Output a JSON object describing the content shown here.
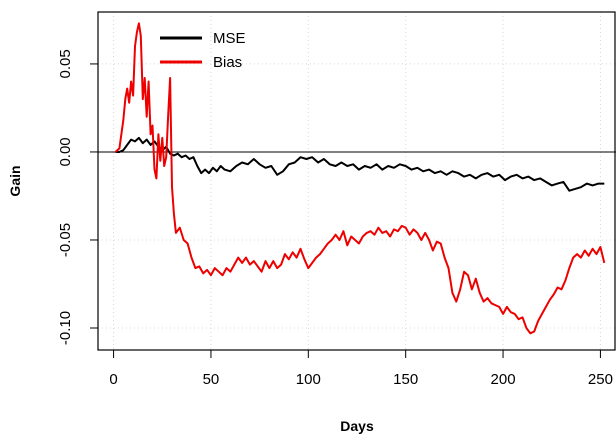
{
  "chart_data": {
    "type": "line",
    "title": "",
    "xlabel": "Days",
    "ylabel": "Gain",
    "xlim": [
      -8,
      258
    ],
    "ylim": [
      -0.1125,
      0.0795
    ],
    "x_ticks": [
      0,
      50,
      100,
      150,
      200,
      250
    ],
    "y_ticks": [
      -0.1,
      -0.05,
      0.0,
      0.05
    ],
    "y_tick_labels": [
      "-0.10",
      "-0.05",
      "0.00",
      "0.05"
    ],
    "grid": true,
    "reference_line": 0,
    "legend_position": "top-left",
    "series": [
      {
        "name": "MSE",
        "color": "#000000",
        "points": [
          [
            1,
            0
          ],
          [
            3,
            0
          ],
          [
            5,
            0.001
          ],
          [
            7,
            0.004
          ],
          [
            9,
            0.007
          ],
          [
            11,
            0.006
          ],
          [
            13,
            0.008
          ],
          [
            15,
            0.005
          ],
          [
            17,
            0.007
          ],
          [
            19,
            0.004
          ],
          [
            21,
            0.006
          ],
          [
            23,
            0.003
          ],
          [
            25,
            0.001
          ],
          [
            27,
            0.003
          ],
          [
            29,
            -0.001
          ],
          [
            31,
            -0.002
          ],
          [
            33,
            -0.001
          ],
          [
            35,
            -0.003
          ],
          [
            37,
            -0.002
          ],
          [
            39,
            -0.004
          ],
          [
            41,
            -0.003
          ],
          [
            43,
            -0.008
          ],
          [
            45,
            -0.012
          ],
          [
            47,
            -0.01
          ],
          [
            49,
            -0.012
          ],
          [
            51,
            -0.009
          ],
          [
            53,
            -0.011
          ],
          [
            55,
            -0.008
          ],
          [
            57,
            -0.01
          ],
          [
            60,
            -0.011
          ],
          [
            63,
            -0.008
          ],
          [
            66,
            -0.006
          ],
          [
            69,
            -0.007
          ],
          [
            72,
            -0.004
          ],
          [
            75,
            -0.007
          ],
          [
            78,
            -0.009
          ],
          [
            81,
            -0.008
          ],
          [
            84,
            -0.013
          ],
          [
            87,
            -0.011
          ],
          [
            90,
            -0.007
          ],
          [
            93,
            -0.006
          ],
          [
            96,
            -0.003
          ],
          [
            99,
            -0.004
          ],
          [
            102,
            -0.003
          ],
          [
            105,
            -0.006
          ],
          [
            108,
            -0.004
          ],
          [
            111,
            -0.007
          ],
          [
            114,
            -0.008
          ],
          [
            117,
            -0.006
          ],
          [
            120,
            -0.008
          ],
          [
            123,
            -0.007
          ],
          [
            126,
            -0.01
          ],
          [
            129,
            -0.008
          ],
          [
            132,
            -0.009
          ],
          [
            135,
            -0.007
          ],
          [
            138,
            -0.01
          ],
          [
            141,
            -0.008
          ],
          [
            144,
            -0.009
          ],
          [
            147,
            -0.007
          ],
          [
            150,
            -0.008
          ],
          [
            153,
            -0.01
          ],
          [
            156,
            -0.009
          ],
          [
            159,
            -0.011
          ],
          [
            162,
            -0.01
          ],
          [
            165,
            -0.012
          ],
          [
            168,
            -0.011
          ],
          [
            171,
            -0.013
          ],
          [
            174,
            -0.011
          ],
          [
            177,
            -0.012
          ],
          [
            180,
            -0.014
          ],
          [
            183,
            -0.013
          ],
          [
            186,
            -0.015
          ],
          [
            189,
            -0.013
          ],
          [
            192,
            -0.012
          ],
          [
            195,
            -0.014
          ],
          [
            198,
            -0.013
          ],
          [
            201,
            -0.016
          ],
          [
            204,
            -0.014
          ],
          [
            207,
            -0.013
          ],
          [
            210,
            -0.015
          ],
          [
            213,
            -0.014
          ],
          [
            216,
            -0.016
          ],
          [
            219,
            -0.015
          ],
          [
            222,
            -0.017
          ],
          [
            225,
            -0.019
          ],
          [
            228,
            -0.018
          ],
          [
            231,
            -0.017
          ],
          [
            234,
            -0.022
          ],
          [
            237,
            -0.021
          ],
          [
            240,
            -0.02
          ],
          [
            243,
            -0.018
          ],
          [
            246,
            -0.019
          ],
          [
            249,
            -0.018
          ],
          [
            252,
            -0.018
          ]
        ]
      },
      {
        "name": "Bias",
        "color": "#ee0000",
        "points": [
          [
            1,
            0
          ],
          [
            3,
            0.002
          ],
          [
            5,
            0.018
          ],
          [
            6,
            0.03
          ],
          [
            7,
            0.036
          ],
          [
            8,
            0.028
          ],
          [
            9,
            0.04
          ],
          [
            10,
            0.032
          ],
          [
            11,
            0.06
          ],
          [
            12,
            0.068
          ],
          [
            13,
            0.073
          ],
          [
            14,
            0.066
          ],
          [
            15,
            0.03
          ],
          [
            16,
            0.042
          ],
          [
            17,
            0.02
          ],
          [
            18,
            0.04
          ],
          [
            19,
            0.01
          ],
          [
            20,
            0.015
          ],
          [
            21,
            -0.01
          ],
          [
            22,
            -0.015
          ],
          [
            23,
            0.01
          ],
          [
            24,
            -0.005
          ],
          [
            25,
            0.008
          ],
          [
            26,
            -0.008
          ],
          [
            27,
            -0.003
          ],
          [
            28,
            0.02
          ],
          [
            29,
            0.042
          ],
          [
            30,
            -0.02
          ],
          [
            31,
            -0.035
          ],
          [
            32,
            -0.046
          ],
          [
            34,
            -0.043
          ],
          [
            36,
            -0.05
          ],
          [
            38,
            -0.052
          ],
          [
            40,
            -0.06
          ],
          [
            42,
            -0.066
          ],
          [
            44,
            -0.065
          ],
          [
            46,
            -0.069
          ],
          [
            48,
            -0.067
          ],
          [
            50,
            -0.07
          ],
          [
            52,
            -0.066
          ],
          [
            54,
            -0.068
          ],
          [
            56,
            -0.07
          ],
          [
            58,
            -0.066
          ],
          [
            60,
            -0.068
          ],
          [
            62,
            -0.064
          ],
          [
            64,
            -0.06
          ],
          [
            66,
            -0.063
          ],
          [
            68,
            -0.06
          ],
          [
            70,
            -0.064
          ],
          [
            72,
            -0.062
          ],
          [
            74,
            -0.065
          ],
          [
            76,
            -0.068
          ],
          [
            78,
            -0.062
          ],
          [
            80,
            -0.066
          ],
          [
            82,
            -0.062
          ],
          [
            84,
            -0.066
          ],
          [
            86,
            -0.064
          ],
          [
            88,
            -0.058
          ],
          [
            90,
            -0.061
          ],
          [
            92,
            -0.057
          ],
          [
            94,
            -0.06
          ],
          [
            96,
            -0.055
          ],
          [
            98,
            -0.061
          ],
          [
            100,
            -0.066
          ],
          [
            102,
            -0.063
          ],
          [
            104,
            -0.06
          ],
          [
            106,
            -0.058
          ],
          [
            108,
            -0.055
          ],
          [
            110,
            -0.052
          ],
          [
            112,
            -0.05
          ],
          [
            114,
            -0.047
          ],
          [
            116,
            -0.05
          ],
          [
            118,
            -0.045
          ],
          [
            120,
            -0.053
          ],
          [
            122,
            -0.048
          ],
          [
            124,
            -0.05
          ],
          [
            126,
            -0.052
          ],
          [
            128,
            -0.048
          ],
          [
            130,
            -0.046
          ],
          [
            132,
            -0.045
          ],
          [
            134,
            -0.047
          ],
          [
            136,
            -0.043
          ],
          [
            138,
            -0.046
          ],
          [
            140,
            -0.045
          ],
          [
            142,
            -0.048
          ],
          [
            144,
            -0.044
          ],
          [
            146,
            -0.045
          ],
          [
            148,
            -0.042
          ],
          [
            150,
            -0.043
          ],
          [
            152,
            -0.047
          ],
          [
            154,
            -0.044
          ],
          [
            156,
            -0.046
          ],
          [
            158,
            -0.05
          ],
          [
            160,
            -0.046
          ],
          [
            162,
            -0.05
          ],
          [
            164,
            -0.056
          ],
          [
            166,
            -0.051
          ],
          [
            168,
            -0.052
          ],
          [
            170,
            -0.06
          ],
          [
            172,
            -0.066
          ],
          [
            174,
            -0.08
          ],
          [
            176,
            -0.085
          ],
          [
            178,
            -0.078
          ],
          [
            180,
            -0.068
          ],
          [
            182,
            -0.07
          ],
          [
            184,
            -0.078
          ],
          [
            186,
            -0.072
          ],
          [
            188,
            -0.08
          ],
          [
            190,
            -0.085
          ],
          [
            192,
            -0.083
          ],
          [
            194,
            -0.086
          ],
          [
            196,
            -0.087
          ],
          [
            198,
            -0.088
          ],
          [
            200,
            -0.092
          ],
          [
            202,
            -0.088
          ],
          [
            204,
            -0.091
          ],
          [
            206,
            -0.092
          ],
          [
            208,
            -0.095
          ],
          [
            210,
            -0.094
          ],
          [
            212,
            -0.1
          ],
          [
            214,
            -0.103
          ],
          [
            216,
            -0.102
          ],
          [
            218,
            -0.096
          ],
          [
            220,
            -0.092
          ],
          [
            222,
            -0.088
          ],
          [
            224,
            -0.084
          ],
          [
            226,
            -0.081
          ],
          [
            228,
            -0.077
          ],
          [
            230,
            -0.078
          ],
          [
            232,
            -0.073
          ],
          [
            234,
            -0.066
          ],
          [
            236,
            -0.06
          ],
          [
            238,
            -0.058
          ],
          [
            240,
            -0.06
          ],
          [
            242,
            -0.056
          ],
          [
            244,
            -0.059
          ],
          [
            246,
            -0.055
          ],
          [
            248,
            -0.058
          ],
          [
            250,
            -0.054
          ],
          [
            252,
            -0.063
          ]
        ]
      }
    ]
  }
}
